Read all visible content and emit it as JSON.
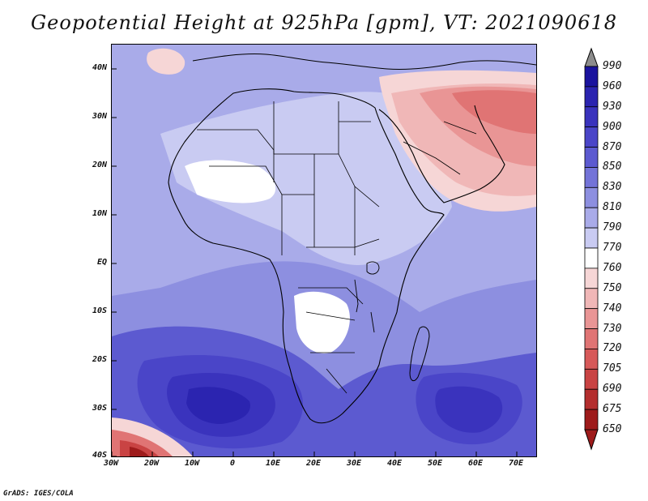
{
  "title": "Geopotential Height at 925hPa [gpm], VT: 2021090618",
  "footer": "GrADS: IGES/COLA",
  "map": {
    "region": "Africa and Arabian Peninsula",
    "field": "Geopotential Height 925hPa",
    "lat_labels": [
      "40N",
      "30N",
      "20N",
      "10N",
      "EQ",
      "10S",
      "20S",
      "30S",
      "40S"
    ],
    "lon_labels": [
      "30W",
      "20W",
      "10W",
      "0",
      "10E",
      "20E",
      "30E",
      "40E",
      "50E",
      "60E",
      "70E"
    ],
    "colors": {
      "c990": "#8c8c8c",
      "c960": "#1a139e",
      "c930": "#2b24b0",
      "c900": "#3a33bd",
      "c870": "#4a45c8",
      "c850": "#5c5ad0",
      "c830": "#7373d8",
      "c810": "#8d8fe0",
      "c790": "#a9abe9",
      "c770": "#c9cbf2",
      "c760": "#ffffff",
      "c750": "#f6d6d6",
      "c740": "#f0b7b7",
      "c730": "#e99595",
      "c720": "#e07474",
      "c705": "#d75959",
      "c690": "#c94343",
      "c675": "#b42e2e",
      "c650": "#9e1b1b"
    }
  },
  "colorbar": {
    "levels": [
      "990",
      "960",
      "930",
      "900",
      "870",
      "850",
      "830",
      "810",
      "790",
      "770",
      "760",
      "750",
      "740",
      "730",
      "720",
      "705",
      "690",
      "675",
      "650"
    ],
    "colors": [
      "#1a139e",
      "#2b24b0",
      "#3a33bd",
      "#4a45c8",
      "#5c5ad0",
      "#7373d8",
      "#8d8fe0",
      "#a9abe9",
      "#c9cbf2",
      "#ffffff",
      "#f6d6d6",
      "#f0b7b7",
      "#e99595",
      "#e07474",
      "#d75959",
      "#c94343",
      "#b42e2e",
      "#9e1b1b"
    ],
    "top_arrow_color": "#8c8c8c",
    "bottom_arrow_color": "#9e1b1b"
  }
}
